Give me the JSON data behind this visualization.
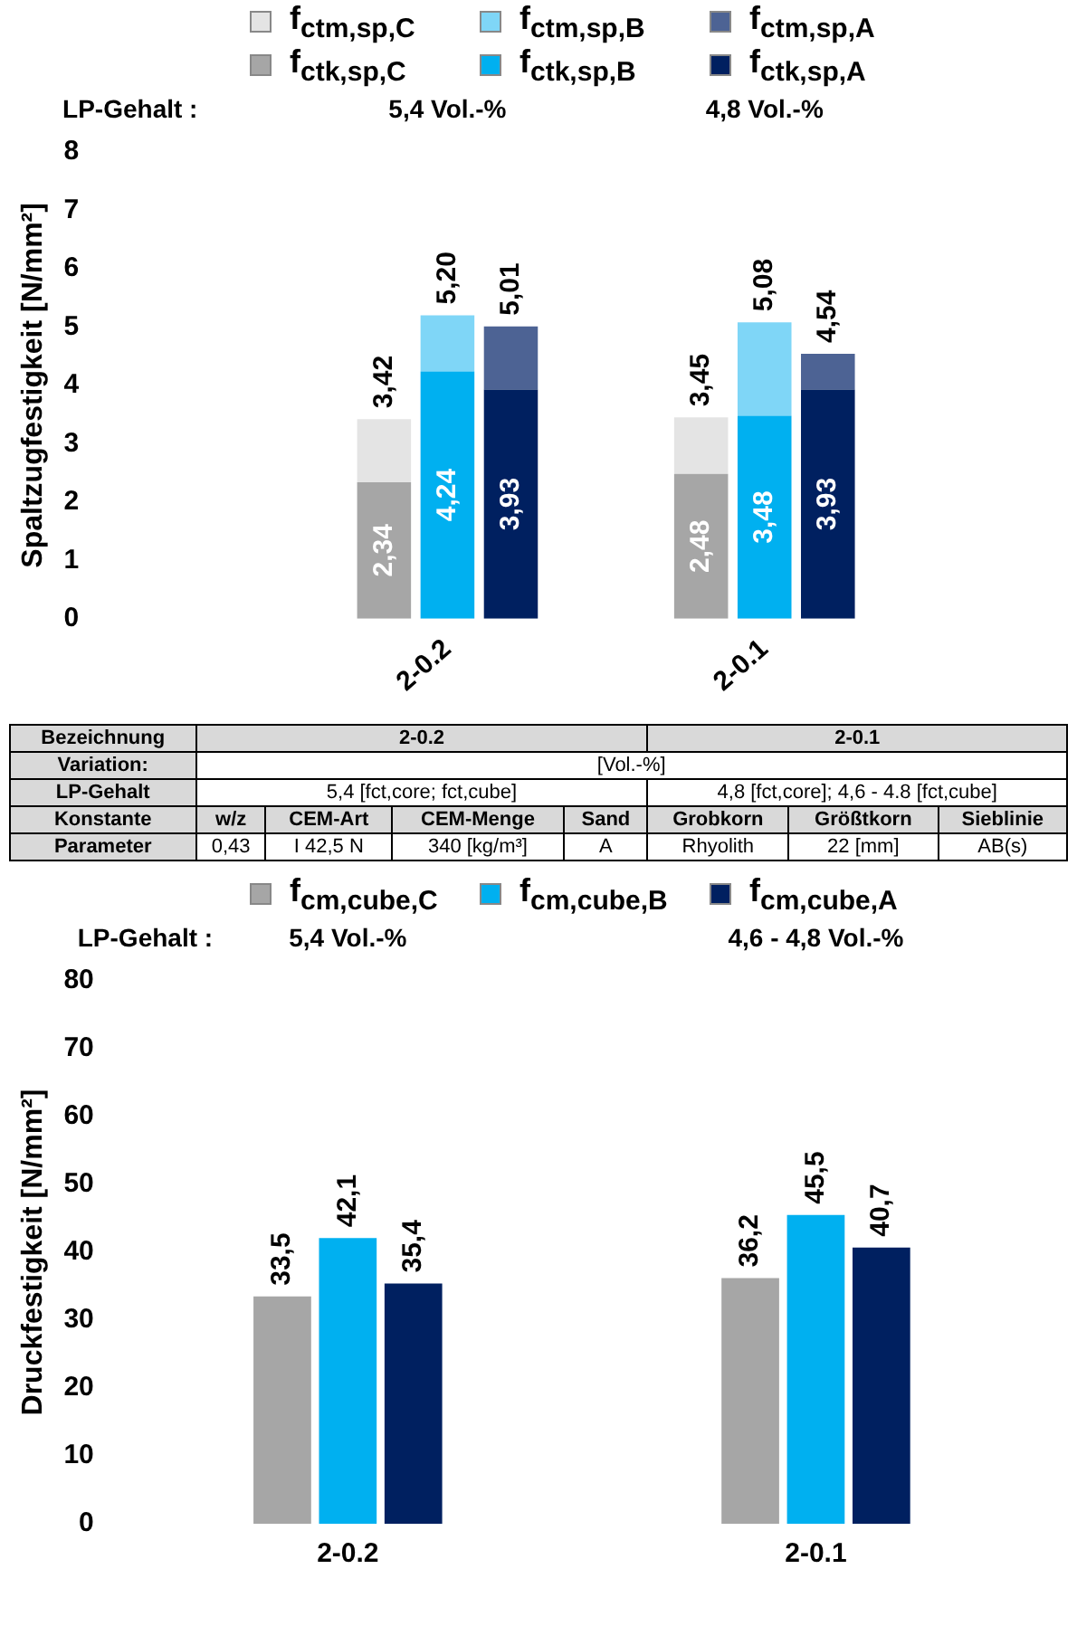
{
  "chart_data": [
    {
      "type": "bar",
      "stacked": true,
      "ylabel": "Spaltzugfestigkeit [N/mm²]",
      "categories": [
        null,
        null,
        null,
        null,
        null,
        "2-0.2",
        null,
        null,
        null,
        null,
        "2-0.1",
        null,
        null,
        null,
        null
      ],
      "ylim": [
        0,
        8
      ],
      "yticks": [
        0,
        1,
        2,
        3,
        4,
        5,
        6,
        7,
        8
      ],
      "grid": false,
      "legend": "top",
      "annotations": [
        "LP-Gehalt :",
        "5,4 Vol.-%",
        "4,8 Vol.-%"
      ],
      "totals": [
        null,
        null,
        null,
        null,
        "3,42",
        "5,20",
        "5,01",
        null,
        null,
        "3,45",
        "5,08",
        "4,54",
        null,
        null,
        null
      ],
      "series": [
        {
          "name": "f$_{ctk,sp,C}$",
          "color": "#a6a6a6",
          "values": [
            null,
            null,
            null,
            null,
            2.34,
            null,
            null,
            null,
            null,
            2.48,
            null,
            null,
            null,
            null,
            null
          ],
          "value_labels": [
            null,
            null,
            null,
            null,
            "2,34",
            null,
            null,
            null,
            null,
            "2,48",
            null,
            null,
            null,
            null,
            null
          ]
        },
        {
          "name": "f$_{ctk,sp,B}$",
          "color": "#00b0f0",
          "values": [
            null,
            null,
            null,
            null,
            null,
            4.24,
            null,
            null,
            null,
            null,
            3.48,
            null,
            null,
            null,
            null
          ],
          "value_labels": [
            null,
            null,
            null,
            null,
            null,
            "4,24",
            null,
            null,
            null,
            null,
            "3,48",
            null,
            null,
            null,
            null
          ]
        },
        {
          "name": "f$_{ctk,sp,A}$",
          "color": "#002060",
          "values": [
            null,
            null,
            null,
            null,
            null,
            null,
            3.93,
            null,
            null,
            null,
            null,
            3.93,
            null,
            null,
            null
          ],
          "value_labels": [
            null,
            null,
            null,
            null,
            null,
            null,
            "3,93",
            null,
            null,
            null,
            null,
            "3,93",
            null,
            null,
            null
          ]
        },
        {
          "name": "f$_{ctm,sp,C}$",
          "color": "#e4e4e4",
          "values": [
            null,
            null,
            null,
            null,
            1.08,
            null,
            null,
            null,
            null,
            0.97,
            null,
            null,
            null,
            null,
            null
          ]
        },
        {
          "name": "f$_{ctm,sp,B}$",
          "color": "#7fd6f7",
          "values": [
            null,
            null,
            null,
            null,
            null,
            0.96,
            null,
            null,
            null,
            null,
            1.6,
            null,
            null,
            null,
            null
          ]
        },
        {
          "name": "f$_{ctm,sp,A}$",
          "color": "#4d6394",
          "values": [
            null,
            null,
            null,
            null,
            null,
            null,
            1.08,
            null,
            null,
            null,
            null,
            0.61,
            null,
            null,
            null
          ]
        }
      ]
    },
    {
      "type": "other",
      "annotations": [
        "Bezeichnung",
        "2-0.2",
        "2-0.1",
        "Variation:",
        "[Vol.-%]",
        "LP-Gehalt",
        "5,4 [fct,core; fct,cube]",
        "4,8 [fct,core]; 4,6 - 4.8 [fct,cube]",
        "Konstante",
        "w/z",
        "CEM-Art",
        "CEM-Menge",
        "Sand",
        "Grobkorn",
        "Größtkorn",
        "Sieblinie",
        "Parameter",
        "0,43",
        "I 42,5 N",
        "340 [kg/m³]",
        "A",
        "Rhyolith",
        "22 [mm]",
        "AB(s)"
      ]
    },
    {
      "type": "bar",
      "ylabel": "Druckfestigkeit [N/mm²]",
      "categories": [
        "2-0.2",
        "2-0.1"
      ],
      "ylim": [
        0,
        80
      ],
      "yticks": [
        0,
        10,
        20,
        30,
        40,
        50,
        60,
        70,
        80
      ],
      "grid": false,
      "legend": "top",
      "annotations": [
        "LP-Gehalt :",
        "5,4 Vol.-%",
        "4,6 - 4,8 Vol.-%"
      ],
      "series": [
        {
          "name": "f$_{cm,cube,C}$",
          "color": "#a6a6a6",
          "values": [
            33.5,
            36.2
          ],
          "value_labels": [
            "33,5",
            "36,2"
          ]
        },
        {
          "name": "f$_{cm,cube,B}$",
          "color": "#00b0f0",
          "values": [
            42.1,
            45.5
          ],
          "value_labels": [
            "42,1",
            "45,5"
          ]
        },
        {
          "name": "f$_{cm,cube,A}$",
          "color": "#002060",
          "values": [
            35.4,
            40.7
          ],
          "value_labels": [
            "35,4",
            "40,7"
          ]
        }
      ]
    }
  ]
}
